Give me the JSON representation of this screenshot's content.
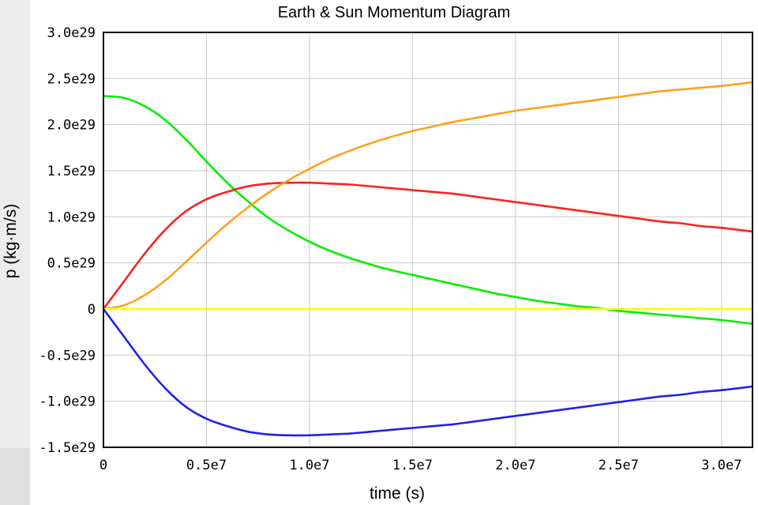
{
  "chart_data": {
    "type": "line",
    "title": "Earth & Sun Momentum Diagram",
    "xlabel": "time (s)",
    "ylabel": "p (kg·m/s)",
    "xlim": [
      0,
      31500000
    ],
    "ylim": [
      -1.5e+29,
      3e+29
    ],
    "x_ticks": [
      {
        "value": 0,
        "label": "0"
      },
      {
        "value": 5000000,
        "label": "0.5e7"
      },
      {
        "value": 10000000,
        "label": "1.0e7"
      },
      {
        "value": 15000000,
        "label": "1.5e7"
      },
      {
        "value": 20000000,
        "label": "2.0e7"
      },
      {
        "value": 25000000,
        "label": "2.5e7"
      },
      {
        "value": 30000000,
        "label": "3.0e7"
      }
    ],
    "y_ticks": [
      {
        "value": 3e+29,
        "label": "3.0e29"
      },
      {
        "value": 2.5e+29,
        "label": "2.5e29"
      },
      {
        "value": 2e+29,
        "label": "2.0e29"
      },
      {
        "value": 1.5e+29,
        "label": "1.5e29"
      },
      {
        "value": 1e+29,
        "label": "1.0e29"
      },
      {
        "value": 5e+28,
        "label": "0.5e29"
      },
      {
        "value": 0,
        "label": "0"
      },
      {
        "value": -5e+28,
        "label": "-0.5e29"
      },
      {
        "value": -1e+29,
        "label": "-1.0e29"
      },
      {
        "value": -1.5e+29,
        "label": "-1.5e29"
      }
    ],
    "grid": true,
    "x": [
      0,
      1000000,
      2000000,
      3000000,
      4000000,
      5000000,
      6000000,
      7000000,
      8000000,
      9000000,
      10000000,
      11000000,
      12000000,
      13000000,
      14000000,
      15000000,
      16000000,
      17000000,
      18000000,
      19000000,
      20000000,
      21000000,
      22000000,
      23000000,
      24000000,
      25000000,
      26000000,
      27000000,
      28000000,
      29000000,
      30000000,
      31500000
    ],
    "series": [
      {
        "color": "#00ee00",
        "values": [
          2.31e+29,
          2.29e+29,
          2.2e+29,
          2.05e+29,
          1.84e+29,
          1.6e+29,
          1.37e+29,
          1.17e+29,
          9.9e+28,
          8.5e+28,
          7.3e+28,
          6.3e+28,
          5.5e+28,
          4.8e+28,
          4.2e+28,
          3.7e+28,
          3.2e+28,
          2.7e+28,
          2.2e+28,
          1.7e+28,
          1.3e+28,
          9e+27,
          6e+27,
          3e+27,
          1e+27,
          -2e+27,
          -4e+27,
          -6e+27,
          -8e+27,
          -1e+28,
          -1.2e+28,
          -1.6e+28
        ]
      },
      {
        "color": "#ff2020",
        "values": [
          0,
          3e+28,
          6e+28,
          8.6e+28,
          1.06e+29,
          1.19e+29,
          1.27e+29,
          1.33e+29,
          1.36e+29,
          1.37e+29,
          1.37e+29,
          1.36e+29,
          1.35e+29,
          1.33e+29,
          1.31e+29,
          1.29e+29,
          1.27e+29,
          1.25e+29,
          1.22e+29,
          1.19e+29,
          1.16e+29,
          1.13e+29,
          1.1e+29,
          1.07e+29,
          1.04e+29,
          1.01e+29,
          9.8e+28,
          9.5e+28,
          9.3e+28,
          9e+28,
          8.8e+28,
          8.4e+28
        ]
      },
      {
        "color": "#ffa020",
        "values": [
          0,
          4e+27,
          1.5e+28,
          3.1e+28,
          5.1e+28,
          7.2e+28,
          9.2e+28,
          1.1e+29,
          1.26e+29,
          1.4e+29,
          1.52e+29,
          1.63e+29,
          1.72e+29,
          1.8e+29,
          1.87e+29,
          1.93e+29,
          1.98e+29,
          2.03e+29,
          2.07e+29,
          2.11e+29,
          2.15e+29,
          2.18e+29,
          2.21e+29,
          2.24e+29,
          2.27e+29,
          2.3e+29,
          2.33e+29,
          2.36e+29,
          2.38e+29,
          2.4e+29,
          2.42e+29,
          2.46e+29
        ]
      },
      {
        "color": "#ffff00",
        "values": [
          0,
          0,
          0,
          0,
          0,
          0,
          0,
          0,
          0,
          0,
          0,
          0,
          0,
          0,
          0,
          0,
          0,
          0,
          0,
          0,
          0,
          0,
          0,
          0,
          0,
          0,
          0,
          0,
          0,
          0,
          0,
          0
        ]
      },
      {
        "color": "#2020ee",
        "values": [
          0,
          -3e+28,
          -6e+28,
          -8.6e+28,
          -1.06e+29,
          -1.19e+29,
          -1.27e+29,
          -1.33e+29,
          -1.36e+29,
          -1.37e+29,
          -1.37e+29,
          -1.36e+29,
          -1.35e+29,
          -1.33e+29,
          -1.31e+29,
          -1.29e+29,
          -1.27e+29,
          -1.25e+29,
          -1.22e+29,
          -1.19e+29,
          -1.16e+29,
          -1.13e+29,
          -1.1e+29,
          -1.07e+29,
          -1.04e+29,
          -1.01e+29,
          -9.8e+28,
          -9.5e+28,
          -9.3e+28,
          -9e+28,
          -8.8e+28,
          -8.4e+28
        ]
      }
    ]
  }
}
